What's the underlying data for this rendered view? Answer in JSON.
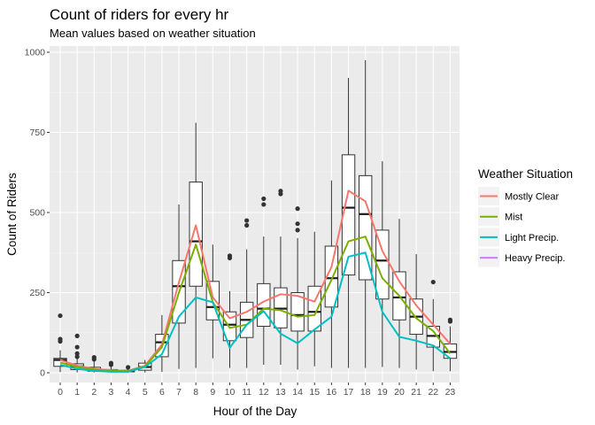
{
  "chart_data": {
    "type": "boxplot+line",
    "title": "Count of riders for every hr",
    "subtitle": "Mean values based on weather situation",
    "xlabel": "Hour of the Day",
    "ylabel": "Count of Riders",
    "ylim": [
      -40,
      1000
    ],
    "y_ticks": [
      0,
      250,
      500,
      750,
      1000
    ],
    "categories": [
      "0",
      "1",
      "2",
      "3",
      "4",
      "5",
      "6",
      "7",
      "8",
      "9",
      "10",
      "11",
      "12",
      "13",
      "14",
      "15",
      "16",
      "17",
      "18",
      "19",
      "20",
      "21",
      "22",
      "23"
    ],
    "legend": {
      "title": "Weather Situation",
      "position": "right"
    },
    "boxes": [
      {
        "low": 2,
        "q1": 20,
        "median": 40,
        "q3": 45,
        "high": 70,
        "outliers": [
          98,
          105,
          178
        ]
      },
      {
        "low": 1,
        "q1": 10,
        "median": 20,
        "q3": 28,
        "high": 50,
        "outliers": [
          50,
          60,
          80,
          115
        ]
      },
      {
        "low": 1,
        "q1": 5,
        "median": 8,
        "q3": 17,
        "high": 40,
        "outliers": [
          42,
          48
        ]
      },
      {
        "low": 1,
        "q1": 3,
        "median": 5,
        "q3": 10,
        "high": 22,
        "outliers": [
          25,
          30
        ]
      },
      {
        "low": 1,
        "q1": 3,
        "median": 5,
        "q3": 8,
        "high": 18,
        "outliers": [
          17
        ]
      },
      {
        "low": 1,
        "q1": 8,
        "median": 18,
        "q3": 30,
        "high": 40,
        "outliers": []
      },
      {
        "low": 3,
        "q1": 50,
        "median": 95,
        "q3": 120,
        "high": 180,
        "outliers": []
      },
      {
        "low": 12,
        "q1": 155,
        "median": 270,
        "q3": 350,
        "high": 525,
        "outliers": []
      },
      {
        "low": 15,
        "q1": 270,
        "median": 410,
        "q3": 595,
        "high": 780,
        "outliers": []
      },
      {
        "low": 45,
        "q1": 165,
        "median": 205,
        "q3": 285,
        "high": 400,
        "outliers": []
      },
      {
        "low": 15,
        "q1": 100,
        "median": 150,
        "q3": 190,
        "high": 255,
        "outliers": [
          358,
          365
        ]
      },
      {
        "low": 15,
        "q1": 110,
        "median": 165,
        "q3": 220,
        "high": 385,
        "outliers": [
          460,
          475
        ]
      },
      {
        "low": 25,
        "q1": 145,
        "median": 200,
        "q3": 278,
        "high": 425,
        "outliers": [
          525,
          543
        ]
      },
      {
        "low": 25,
        "q1": 140,
        "median": 200,
        "q3": 265,
        "high": 425,
        "outliers": [
          558,
          567
        ]
      },
      {
        "low": 10,
        "q1": 130,
        "median": 180,
        "q3": 250,
        "high": 420,
        "outliers": [
          445,
          465,
          512
        ]
      },
      {
        "low": 20,
        "q1": 130,
        "median": 190,
        "q3": 270,
        "high": 440,
        "outliers": []
      },
      {
        "low": 15,
        "q1": 205,
        "median": 295,
        "q3": 395,
        "high": 600,
        "outliers": []
      },
      {
        "low": 15,
        "q1": 305,
        "median": 515,
        "q3": 680,
        "high": 920,
        "outliers": []
      },
      {
        "low": 15,
        "q1": 290,
        "median": 495,
        "q3": 615,
        "high": 975,
        "outliers": []
      },
      {
        "low": 18,
        "q1": 230,
        "median": 350,
        "q3": 445,
        "high": 660,
        "outliers": []
      },
      {
        "low": 15,
        "q1": 165,
        "median": 235,
        "q3": 315,
        "high": 480,
        "outliers": []
      },
      {
        "low": 10,
        "q1": 120,
        "median": 175,
        "q3": 230,
        "high": 370,
        "outliers": []
      },
      {
        "low": 5,
        "q1": 80,
        "median": 115,
        "q3": 145,
        "high": 230,
        "outliers": [
          283
        ]
      },
      {
        "low": 5,
        "q1": 45,
        "median": 65,
        "q3": 90,
        "high": 145,
        "outliers": [
          160,
          165
        ]
      }
    ],
    "series": [
      {
        "name": "Mostly Clear",
        "color": "#F8766D",
        "values": [
          40,
          22,
          12,
          8,
          6,
          22,
          88,
          282,
          460,
          235,
          170,
          190,
          222,
          245,
          240,
          222,
          330,
          568,
          535,
          380,
          285,
          210,
          150,
          90
        ]
      },
      {
        "name": "Mist",
        "color": "#7CAE00",
        "values": [
          32,
          18,
          10,
          6,
          5,
          20,
          80,
          250,
          400,
          220,
          140,
          150,
          200,
          195,
          175,
          180,
          290,
          410,
          425,
          295,
          240,
          170,
          130,
          60
        ]
      },
      {
        "name": "Light Precip.",
        "color": "#00BFC4",
        "values": [
          25,
          12,
          6,
          3,
          3,
          18,
          58,
          175,
          235,
          220,
          78,
          150,
          192,
          122,
          92,
          135,
          175,
          362,
          375,
          190,
          112,
          100,
          85,
          45
        ]
      },
      {
        "name": "Heavy Precip.",
        "color": "#C77CFF",
        "values": []
      }
    ]
  }
}
